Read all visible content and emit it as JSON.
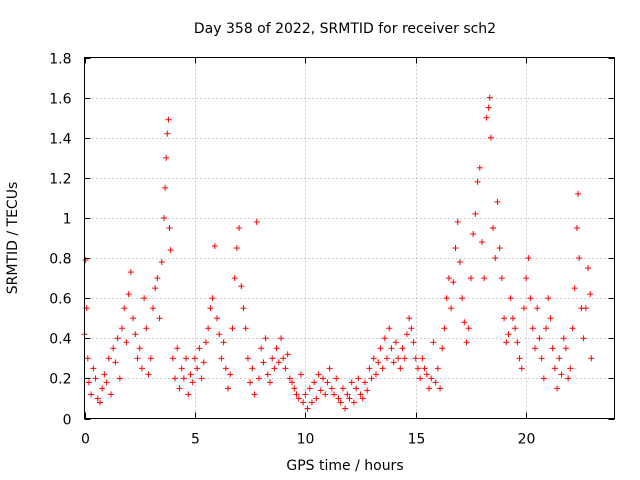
{
  "chart_data": {
    "type": "scatter",
    "title": "Day 358 of 2022, SRMTID for receiver sch2",
    "xlabel": "GPS time / hours",
    "ylabel": "SRMTID / TECUs",
    "xlim": [
      0,
      24
    ],
    "ylim": [
      0,
      1.8
    ],
    "xticks": [
      0,
      5,
      10,
      15,
      20
    ],
    "xtick_labels": [
      "0",
      "5",
      "10",
      "15",
      "20"
    ],
    "yticks": [
      0,
      0.2,
      0.4,
      0.6,
      0.8,
      1,
      1.2,
      1.4,
      1.6,
      1.8
    ],
    "ytick_labels": [
      "0",
      "0.2",
      "0.4",
      "0.6",
      "0.8",
      "1",
      "1.2",
      "1.4",
      "1.6",
      "1.8"
    ],
    "grid": true,
    "marker": "+",
    "marker_color": "#ff0000",
    "series": [
      {
        "name": "sch2",
        "points": [
          [
            0.0,
            0.42
          ],
          [
            0.05,
            0.79
          ],
          [
            0.1,
            0.55
          ],
          [
            0.15,
            0.3
          ],
          [
            0.2,
            0.18
          ],
          [
            0.3,
            0.12
          ],
          [
            0.4,
            0.25
          ],
          [
            0.5,
            0.2
          ],
          [
            0.6,
            0.1
          ],
          [
            0.7,
            0.08
          ],
          [
            0.8,
            0.15
          ],
          [
            0.9,
            0.22
          ],
          [
            1.0,
            0.18
          ],
          [
            1.1,
            0.3
          ],
          [
            1.2,
            0.12
          ],
          [
            1.3,
            0.35
          ],
          [
            1.4,
            0.28
          ],
          [
            1.5,
            0.4
          ],
          [
            1.6,
            0.2
          ],
          [
            1.7,
            0.45
          ],
          [
            1.8,
            0.55
          ],
          [
            1.9,
            0.38
          ],
          [
            2.0,
            0.62
          ],
          [
            2.1,
            0.73
          ],
          [
            2.2,
            0.5
          ],
          [
            2.3,
            0.42
          ],
          [
            2.4,
            0.3
          ],
          [
            2.5,
            0.35
          ],
          [
            2.6,
            0.25
          ],
          [
            2.7,
            0.6
          ],
          [
            2.8,
            0.45
          ],
          [
            2.9,
            0.22
          ],
          [
            3.0,
            0.3
          ],
          [
            3.1,
            0.55
          ],
          [
            3.2,
            0.65
          ],
          [
            3.3,
            0.7
          ],
          [
            3.4,
            0.5
          ],
          [
            3.5,
            0.78
          ],
          [
            3.6,
            1.0
          ],
          [
            3.65,
            1.15
          ],
          [
            3.7,
            1.3
          ],
          [
            3.75,
            1.42
          ],
          [
            3.8,
            1.49
          ],
          [
            3.85,
            0.95
          ],
          [
            3.9,
            0.84
          ],
          [
            4.0,
            0.3
          ],
          [
            4.1,
            0.2
          ],
          [
            4.2,
            0.35
          ],
          [
            4.3,
            0.15
          ],
          [
            4.4,
            0.25
          ],
          [
            4.5,
            0.2
          ],
          [
            4.6,
            0.3
          ],
          [
            4.7,
            0.12
          ],
          [
            4.8,
            0.22
          ],
          [
            4.9,
            0.18
          ],
          [
            5.0,
            0.3
          ],
          [
            5.1,
            0.25
          ],
          [
            5.2,
            0.35
          ],
          [
            5.3,
            0.2
          ],
          [
            5.4,
            0.28
          ],
          [
            5.5,
            0.38
          ],
          [
            5.6,
            0.45
          ],
          [
            5.7,
            0.55
          ],
          [
            5.8,
            0.6
          ],
          [
            5.9,
            0.86
          ],
          [
            6.0,
            0.5
          ],
          [
            6.1,
            0.42
          ],
          [
            6.2,
            0.3
          ],
          [
            6.3,
            0.38
          ],
          [
            6.4,
            0.25
          ],
          [
            6.5,
            0.15
          ],
          [
            6.6,
            0.22
          ],
          [
            6.7,
            0.45
          ],
          [
            6.8,
            0.7
          ],
          [
            6.9,
            0.85
          ],
          [
            7.0,
            0.95
          ],
          [
            7.1,
            0.66
          ],
          [
            7.2,
            0.55
          ],
          [
            7.3,
            0.45
          ],
          [
            7.4,
            0.3
          ],
          [
            7.5,
            0.18
          ],
          [
            7.6,
            0.25
          ],
          [
            7.7,
            0.12
          ],
          [
            7.8,
            0.98
          ],
          [
            7.9,
            0.2
          ],
          [
            8.0,
            0.35
          ],
          [
            8.1,
            0.28
          ],
          [
            8.2,
            0.4
          ],
          [
            8.3,
            0.22
          ],
          [
            8.4,
            0.18
          ],
          [
            8.5,
            0.3
          ],
          [
            8.6,
            0.25
          ],
          [
            8.7,
            0.35
          ],
          [
            8.8,
            0.28
          ],
          [
            8.9,
            0.4
          ],
          [
            9.0,
            0.3
          ],
          [
            9.1,
            0.25
          ],
          [
            9.2,
            0.32
          ],
          [
            9.3,
            0.2
          ],
          [
            9.4,
            0.18
          ],
          [
            9.5,
            0.15
          ],
          [
            9.6,
            0.12
          ],
          [
            9.7,
            0.1
          ],
          [
            9.8,
            0.22
          ],
          [
            9.9,
            0.08
          ],
          [
            10.0,
            0.12
          ],
          [
            10.1,
            0.05
          ],
          [
            10.2,
            0.15
          ],
          [
            10.3,
            0.08
          ],
          [
            10.4,
            0.18
          ],
          [
            10.5,
            0.1
          ],
          [
            10.6,
            0.22
          ],
          [
            10.7,
            0.14
          ],
          [
            10.8,
            0.2
          ],
          [
            10.9,
            0.12
          ],
          [
            11.0,
            0.18
          ],
          [
            11.1,
            0.25
          ],
          [
            11.2,
            0.15
          ],
          [
            11.3,
            0.12
          ],
          [
            11.4,
            0.2
          ],
          [
            11.5,
            0.1
          ],
          [
            11.6,
            0.08
          ],
          [
            11.7,
            0.15
          ],
          [
            11.8,
            0.05
          ],
          [
            11.9,
            0.12
          ],
          [
            12.0,
            0.1
          ],
          [
            12.1,
            0.18
          ],
          [
            12.2,
            0.08
          ],
          [
            12.3,
            0.15
          ],
          [
            12.4,
            0.2
          ],
          [
            12.5,
            0.12
          ],
          [
            12.6,
            0.1
          ],
          [
            12.7,
            0.18
          ],
          [
            12.8,
            0.14
          ],
          [
            12.9,
            0.25
          ],
          [
            13.0,
            0.2
          ],
          [
            13.1,
            0.3
          ],
          [
            13.2,
            0.22
          ],
          [
            13.3,
            0.28
          ],
          [
            13.4,
            0.35
          ],
          [
            13.5,
            0.25
          ],
          [
            13.6,
            0.4
          ],
          [
            13.7,
            0.3
          ],
          [
            13.8,
            0.45
          ],
          [
            13.9,
            0.35
          ],
          [
            14.0,
            0.28
          ],
          [
            14.1,
            0.38
          ],
          [
            14.2,
            0.3
          ],
          [
            14.3,
            0.25
          ],
          [
            14.4,
            0.35
          ],
          [
            14.5,
            0.3
          ],
          [
            14.6,
            0.42
          ],
          [
            14.7,
            0.5
          ],
          [
            14.8,
            0.45
          ],
          [
            14.9,
            0.38
          ],
          [
            15.0,
            0.3
          ],
          [
            15.1,
            0.25
          ],
          [
            15.2,
            0.2
          ],
          [
            15.3,
            0.3
          ],
          [
            15.4,
            0.25
          ],
          [
            15.5,
            0.22
          ],
          [
            15.6,
            0.15
          ],
          [
            15.7,
            0.2
          ],
          [
            15.8,
            0.38
          ],
          [
            15.9,
            0.18
          ],
          [
            16.0,
            0.25
          ],
          [
            16.1,
            0.15
          ],
          [
            16.2,
            0.35
          ],
          [
            16.3,
            0.45
          ],
          [
            16.4,
            0.6
          ],
          [
            16.5,
            0.7
          ],
          [
            16.6,
            0.55
          ],
          [
            16.7,
            0.68
          ],
          [
            16.8,
            0.85
          ],
          [
            16.9,
            0.98
          ],
          [
            17.0,
            0.78
          ],
          [
            17.1,
            0.6
          ],
          [
            17.2,
            0.48
          ],
          [
            17.3,
            0.38
          ],
          [
            17.4,
            0.45
          ],
          [
            17.5,
            0.7
          ],
          [
            17.6,
            0.92
          ],
          [
            17.7,
            1.02
          ],
          [
            17.8,
            1.18
          ],
          [
            17.9,
            1.25
          ],
          [
            18.0,
            0.88
          ],
          [
            18.1,
            0.7
          ],
          [
            18.2,
            1.5
          ],
          [
            18.3,
            1.55
          ],
          [
            18.35,
            1.6
          ],
          [
            18.4,
            1.4
          ],
          [
            18.5,
            0.95
          ],
          [
            18.6,
            0.8
          ],
          [
            18.7,
            1.08
          ],
          [
            18.8,
            0.85
          ],
          [
            18.9,
            0.7
          ],
          [
            19.0,
            0.5
          ],
          [
            19.1,
            0.38
          ],
          [
            19.2,
            0.42
          ],
          [
            19.3,
            0.6
          ],
          [
            19.4,
            0.5
          ],
          [
            19.5,
            0.45
          ],
          [
            19.6,
            0.38
          ],
          [
            19.7,
            0.3
          ],
          [
            19.8,
            0.25
          ],
          [
            19.9,
            0.55
          ],
          [
            20.0,
            0.7
          ],
          [
            20.1,
            0.8
          ],
          [
            20.2,
            0.6
          ],
          [
            20.3,
            0.45
          ],
          [
            20.4,
            0.35
          ],
          [
            20.5,
            0.55
          ],
          [
            20.6,
            0.4
          ],
          [
            20.7,
            0.3
          ],
          [
            20.8,
            0.2
          ],
          [
            20.9,
            0.45
          ],
          [
            21.0,
            0.6
          ],
          [
            21.1,
            0.5
          ],
          [
            21.2,
            0.35
          ],
          [
            21.3,
            0.25
          ],
          [
            21.4,
            0.15
          ],
          [
            21.5,
            0.3
          ],
          [
            21.6,
            0.22
          ],
          [
            21.7,
            0.4
          ],
          [
            21.8,
            0.35
          ],
          [
            21.9,
            0.2
          ],
          [
            22.0,
            0.25
          ],
          [
            22.1,
            0.45
          ],
          [
            22.2,
            0.65
          ],
          [
            22.3,
            0.95
          ],
          [
            22.35,
            1.12
          ],
          [
            22.4,
            0.8
          ],
          [
            22.5,
            0.55
          ],
          [
            22.6,
            0.4
          ],
          [
            22.7,
            0.55
          ],
          [
            22.8,
            0.75
          ],
          [
            22.9,
            0.62
          ],
          [
            22.95,
            0.3
          ]
        ]
      }
    ]
  }
}
